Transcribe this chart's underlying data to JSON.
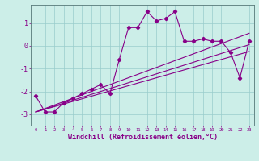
{
  "xlabel": "Windchill (Refroidissement éolien,°C)",
  "bg_color": "#cceee8",
  "grid_color": "#99cccc",
  "line_color": "#880088",
  "xlim": [
    -0.5,
    23.5
  ],
  "ylim": [
    -3.5,
    1.8
  ],
  "yticks": [
    -3,
    -2,
    -1,
    0,
    1
  ],
  "xtick_labels": [
    "0",
    "1",
    "2",
    "3",
    "4",
    "5",
    "6",
    "7",
    "8",
    "9",
    "10",
    "11",
    "12",
    "13",
    "14",
    "15",
    "16",
    "17",
    "18",
    "19",
    "20",
    "21",
    "22",
    "23"
  ],
  "series_x": [
    0,
    1,
    2,
    3,
    4,
    5,
    6,
    7,
    8,
    9,
    10,
    11,
    12,
    13,
    14,
    15,
    16,
    17,
    18,
    19,
    20,
    21,
    22,
    23
  ],
  "series_y": [
    -2.2,
    -2.9,
    -2.9,
    -2.5,
    -2.3,
    -2.1,
    -1.9,
    -1.7,
    -2.1,
    -0.6,
    0.8,
    0.8,
    1.5,
    1.1,
    1.2,
    1.5,
    0.2,
    0.2,
    0.3,
    0.2,
    0.2,
    -0.3,
    -1.4,
    0.2
  ],
  "line2_x": [
    0,
    23
  ],
  "line2_y": [
    -2.9,
    0.05
  ],
  "line3_x": [
    0,
    23
  ],
  "line3_y": [
    -2.9,
    -0.25
  ],
  "line4_x": [
    0,
    23
  ],
  "line4_y": [
    -2.9,
    0.55
  ],
  "xlabel_fontsize": 6,
  "xtick_fontsize": 4,
  "ytick_fontsize": 6,
  "linewidth": 0.8,
  "markersize": 2.2
}
